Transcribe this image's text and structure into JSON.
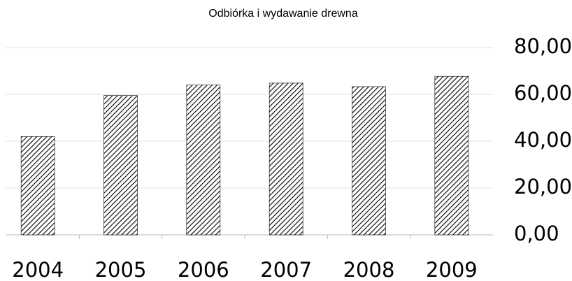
{
  "chart_data": {
    "type": "bar",
    "title": "Odbiórka i wydawanie drewna",
    "categories": [
      "2004",
      "2005",
      "2006",
      "2007",
      "2008",
      "2009"
    ],
    "values": [
      42,
      59.5,
      64,
      64.8,
      63.3,
      67.7
    ],
    "color": "#000000",
    "ylim": [
      0,
      80
    ],
    "yticks": [
      {
        "value": 0,
        "label": "0,00"
      },
      {
        "value": 20,
        "label": "20,00"
      },
      {
        "value": 40,
        "label": "40,00"
      },
      {
        "value": 60,
        "label": "60,00"
      },
      {
        "value": 80,
        "label": "80,00"
      }
    ],
    "grid": true,
    "y_axis_position": "right"
  }
}
